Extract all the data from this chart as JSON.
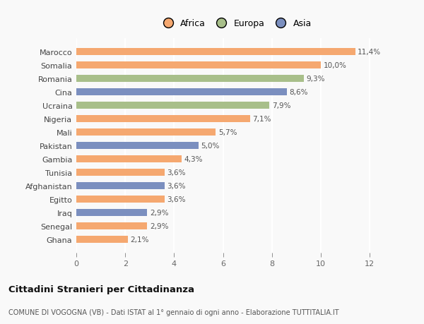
{
  "categories": [
    "Marocco",
    "Somalia",
    "Romania",
    "Cina",
    "Ucraina",
    "Nigeria",
    "Mali",
    "Pakistan",
    "Gambia",
    "Tunisia",
    "Afghanistan",
    "Egitto",
    "Iraq",
    "Senegal",
    "Ghana"
  ],
  "values": [
    11.4,
    10.0,
    9.3,
    8.6,
    7.9,
    7.1,
    5.7,
    5.0,
    4.3,
    3.6,
    3.6,
    3.6,
    2.9,
    2.9,
    2.1
  ],
  "labels": [
    "11,4%",
    "10,0%",
    "9,3%",
    "8,6%",
    "7,9%",
    "7,1%",
    "5,7%",
    "5,0%",
    "4,3%",
    "3,6%",
    "3,6%",
    "3,6%",
    "2,9%",
    "2,9%",
    "2,1%"
  ],
  "continents": [
    "Africa",
    "Africa",
    "Europa",
    "Asia",
    "Europa",
    "Africa",
    "Africa",
    "Asia",
    "Africa",
    "Africa",
    "Asia",
    "Africa",
    "Asia",
    "Africa",
    "Africa"
  ],
  "colors": {
    "Africa": "#F5A870",
    "Europa": "#A8BF8A",
    "Asia": "#7B8FBF"
  },
  "title": "Cittadini Stranieri per Cittadinanza",
  "subtitle": "COMUNE DI VOGOGNA (VB) - Dati ISTAT al 1° gennaio di ogni anno - Elaborazione TUTTITALIA.IT",
  "xlim": [
    0,
    13
  ],
  "xticks": [
    0,
    2,
    4,
    6,
    8,
    10,
    12
  ],
  "background_color": "#f9f9f9",
  "legend_labels": [
    "Africa",
    "Europa",
    "Asia"
  ],
  "legend_colors": [
    "#F5A870",
    "#A8BF8A",
    "#7B8FBF"
  ]
}
